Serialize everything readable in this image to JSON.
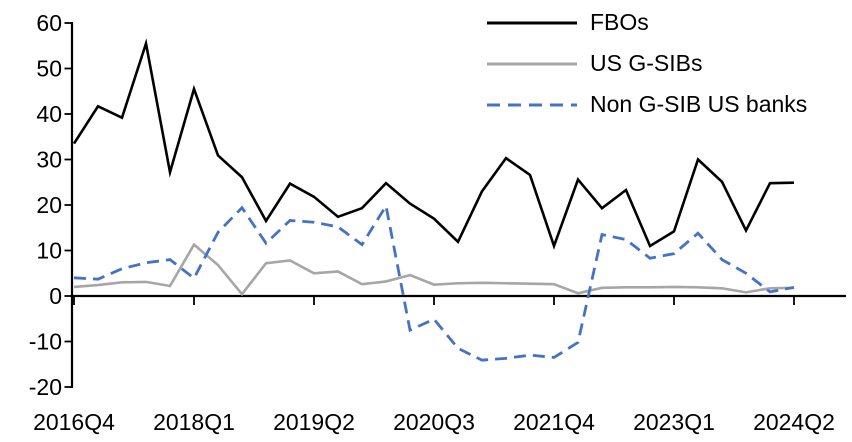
{
  "chart_data": {
    "type": "line",
    "title": "",
    "xlabel": "",
    "ylabel": "",
    "ylim": [
      -20,
      60
    ],
    "grid": false,
    "legend_position": "top-right-inside",
    "y_ticks": [
      60,
      50,
      40,
      30,
      20,
      10,
      0,
      -10,
      -20
    ],
    "x_tick_labels": [
      "2016Q4",
      "2018Q1",
      "2019Q2",
      "2020Q3",
      "2021Q4",
      "2023Q1",
      "2024Q2"
    ],
    "x_tick_indices": [
      0,
      5,
      10,
      15,
      20,
      25,
      30
    ],
    "quarters": [
      "2016Q4",
      "2017Q1",
      "2017Q2",
      "2017Q3",
      "2017Q4",
      "2018Q1",
      "2018Q2",
      "2018Q3",
      "2018Q4",
      "2019Q1",
      "2019Q2",
      "2019Q3",
      "2019Q4",
      "2020Q1",
      "2020Q2",
      "2020Q3",
      "2020Q4",
      "2021Q1",
      "2021Q2",
      "2021Q3",
      "2021Q4",
      "2022Q1",
      "2022Q2",
      "2022Q3",
      "2022Q4",
      "2023Q1",
      "2023Q2",
      "2023Q3",
      "2023Q4",
      "2024Q1",
      "2024Q2"
    ],
    "series": [
      {
        "id": "fbos",
        "name": "FBOs",
        "color": "#000000",
        "dash": false,
        "width": 2.6,
        "values": [
          33.5,
          41.7,
          39.2,
          55.5,
          27.2,
          45.5,
          30.9,
          26.1,
          16.5,
          24.7,
          21.8,
          17.4,
          19.3,
          24.8,
          20.3,
          17.0,
          11.9,
          23.0,
          30.3,
          26.6,
          11.0,
          25.6,
          19.3,
          23.3,
          11.0,
          14.2,
          30.0,
          25.1,
          14.4,
          24.8,
          24.9
        ]
      },
      {
        "id": "us-gsibs",
        "name": "US G-SIBs",
        "color": "#A6A6A6",
        "dash": false,
        "width": 2.6,
        "values": [
          2.0,
          2.4,
          3.0,
          3.1,
          2.2,
          11.3,
          6.8,
          0.4,
          7.2,
          7.8,
          5.0,
          5.4,
          2.6,
          3.2,
          4.6,
          2.5,
          2.8,
          2.9,
          2.8,
          2.7,
          2.6,
          0.6,
          1.8,
          1.9,
          1.9,
          2.0,
          1.9,
          1.7,
          0.8,
          1.7,
          1.8
        ]
      },
      {
        "id": "non-gsib-us-banks",
        "name": "Non G-SIB US banks",
        "color": "#4472C4",
        "dash": true,
        "width": 2.8,
        "values": [
          4.0,
          3.7,
          6.0,
          7.3,
          8.0,
          3.9,
          14.0,
          19.4,
          11.6,
          16.6,
          16.2,
          15.2,
          11.3,
          19.8,
          -7.5,
          -5.1,
          -11.5,
          -14.1,
          -13.7,
          -13.0,
          -13.5,
          -10.2,
          13.5,
          12.4,
          8.3,
          9.3,
          13.8,
          8.0,
          5.0,
          0.9,
          1.9
        ]
      }
    ]
  },
  "colors": {
    "axis": "#000000",
    "background": "#FFFFFF"
  }
}
